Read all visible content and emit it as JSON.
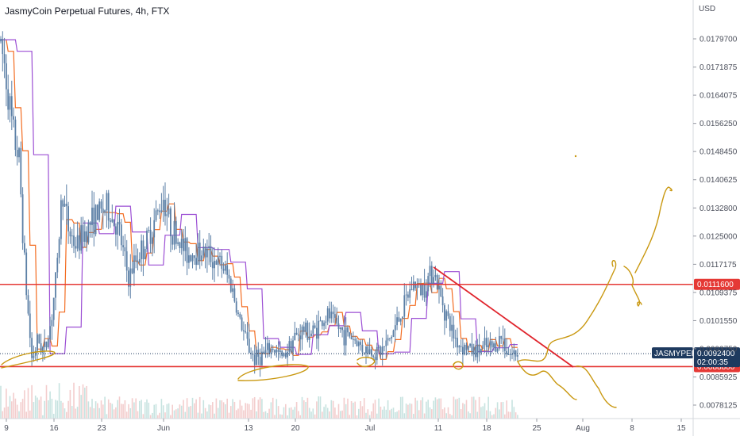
{
  "header": {
    "title": "JasmyCoin Perpetual Futures, 4h, FTX"
  },
  "chart_data": {
    "type": "candlestick",
    "currency": "USD",
    "y_ticks": [
      {
        "label": "0.0179700",
        "value": 0.01797
      },
      {
        "label": "0.0171875",
        "value": 0.0171875
      },
      {
        "label": "0.0164075",
        "value": 0.0164075
      },
      {
        "label": "0.0156250",
        "value": 0.015625
      },
      {
        "label": "0.0148450",
        "value": 0.014845
      },
      {
        "label": "0.0140625",
        "value": 0.0140625
      },
      {
        "label": "0.0132800",
        "value": 0.01328
      },
      {
        "label": "0.0125000",
        "value": 0.0125
      },
      {
        "label": "0.0117175",
        "value": 0.0117175
      },
      {
        "label": "0.0109375",
        "value": 0.0109375
      },
      {
        "label": "0.0101550",
        "value": 0.010155
      },
      {
        "label": "0.0093750",
        "value": 0.009375
      },
      {
        "label": "0.0085925",
        "value": 0.0085925
      },
      {
        "label": "0.0078125",
        "value": 0.0078125
      }
    ],
    "x_ticks": [
      "9",
      "16",
      "23",
      "Jun",
      "13",
      "20",
      "Jul",
      "11",
      "18",
      "25",
      "Aug",
      "8",
      "15"
    ],
    "horizontal_levels": [
      {
        "value": 0.01116,
        "label": "0.0111600",
        "color": "#e53935"
      },
      {
        "value": 0.00888,
        "label": "0.0088800",
        "color": "#e53935"
      }
    ],
    "current_price": {
      "symbol": "JASMYPERP",
      "price": "0.0092400",
      "countdown": "02:00:35",
      "value": 0.00924,
      "color": "#1e3a5f"
    },
    "trendline": {
      "from": {
        "x": "Jul 11",
        "y": 0.01185
      },
      "to": {
        "x": "Jul 28",
        "y": 0.0089
      },
      "color": "#e0252d"
    },
    "colors": {
      "candle": "#5b7fa6",
      "fast_ma": "#f36c21",
      "slow_ma": "#9c4fd4",
      "volume": "#f0c0c0",
      "drawing": "#c99810"
    }
  }
}
